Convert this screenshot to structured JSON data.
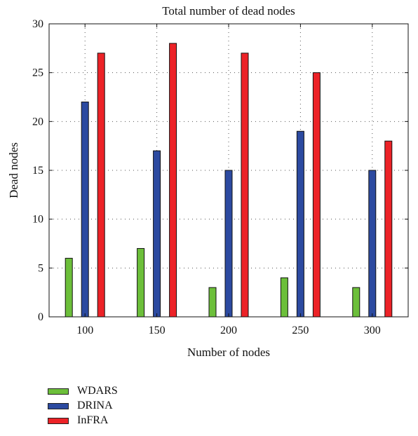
{
  "chart_data": {
    "type": "bar",
    "title": "Total number of dead nodes",
    "xlabel": "Number of nodes",
    "ylabel": "Dead nodes",
    "categories": [
      "100",
      "150",
      "200",
      "250",
      "300"
    ],
    "ylim": [
      0,
      30
    ],
    "yticks": [
      0,
      5,
      10,
      15,
      20,
      25,
      30
    ],
    "grid": true,
    "legend_position": "bottom-left",
    "series": [
      {
        "name": "WDARS",
        "color": "#6cbf3a",
        "values": [
          6,
          7,
          3,
          4,
          3
        ]
      },
      {
        "name": "DRINA",
        "color": "#2c4aa0",
        "values": [
          22,
          17,
          15,
          19,
          15
        ]
      },
      {
        "name": "InFRA",
        "color": "#ec2227",
        "values": [
          27,
          28,
          27,
          25,
          18
        ]
      }
    ]
  }
}
